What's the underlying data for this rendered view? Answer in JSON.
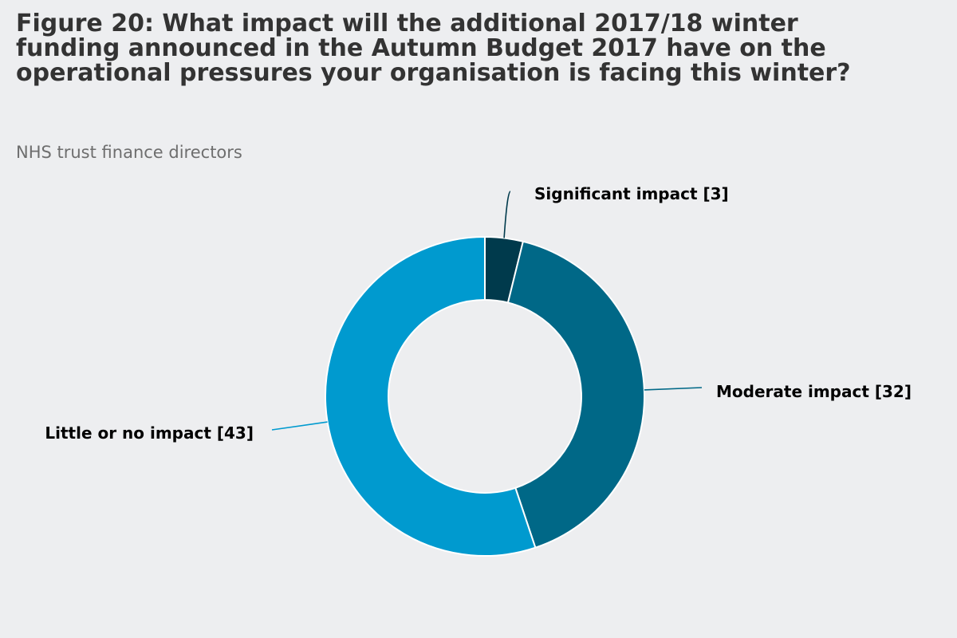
{
  "chart_data": {
    "type": "pie",
    "style": "donut",
    "title": "Figure 20: What impact will the additional 2017/18 winter funding announced in the Autumn Budget 2017 have on the operational pressures your organisation is facing this winter?",
    "subtitle": "NHS trust finance directors",
    "legend": "none",
    "slices": [
      {
        "label": "Significant impact",
        "value": 3,
        "display": "Significant impact [3]",
        "color": "#003a4c"
      },
      {
        "label": "Moderate impact",
        "value": 32,
        "display": "Moderate impact [32]",
        "color": "#006887"
      },
      {
        "label": "Little or no impact",
        "value": 43,
        "display": "Little or no impact [43]",
        "color": "#009acf"
      }
    ]
  }
}
